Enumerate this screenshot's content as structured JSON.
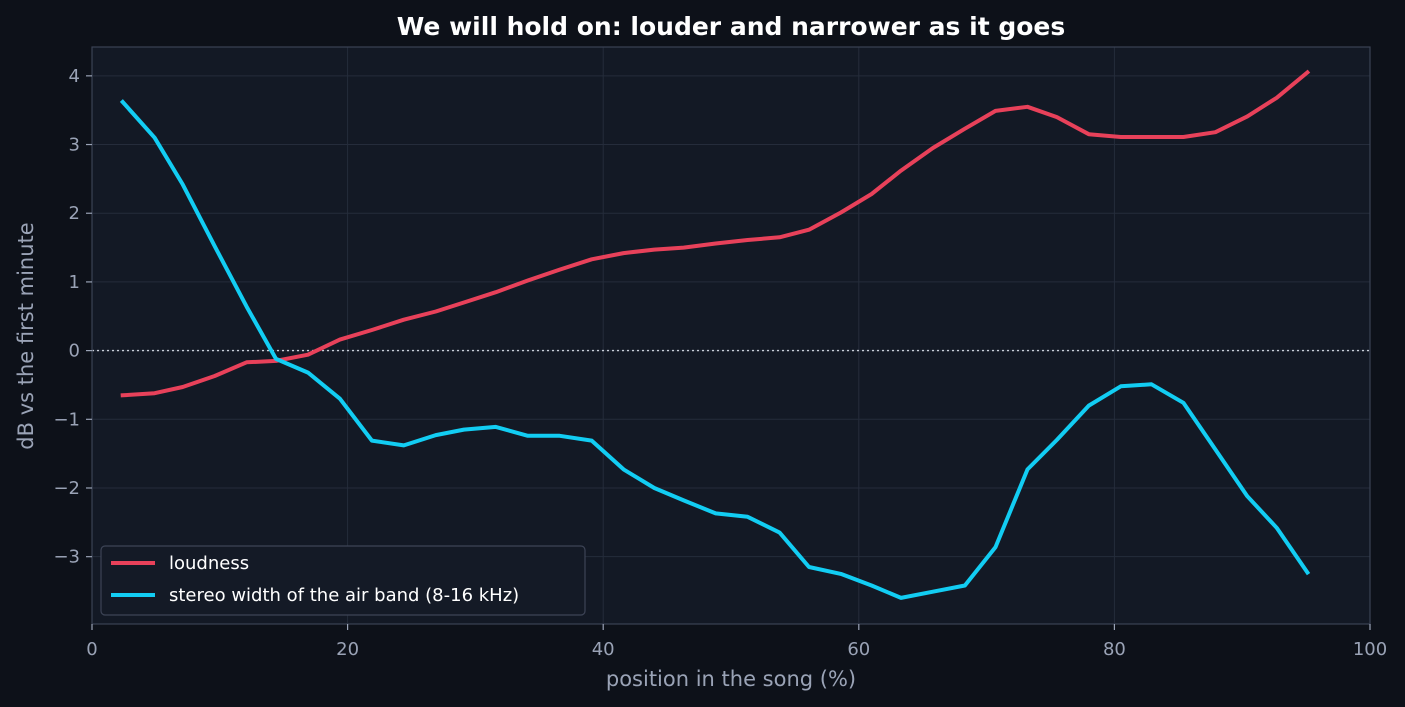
{
  "chart_data": {
    "type": "line",
    "title": "We will hold on: louder and narrower as it goes",
    "xlabel": "position in the song (%)",
    "ylabel": "dB vs the first minute",
    "xlim": [
      0,
      100
    ],
    "ylim": [
      -3.98,
      4.42
    ],
    "xticks": [
      0,
      20,
      40,
      60,
      80,
      100
    ],
    "yticks": [
      -3,
      -2,
      -1,
      0,
      1,
      2,
      3,
      4
    ],
    "grid": true,
    "legend_position": "lower-left",
    "reference_line": {
      "y": 0,
      "style": "dotted",
      "color": "#c9ced8"
    },
    "background_color": "#0d1119",
    "plot_background_color": "#131925",
    "series": [
      {
        "name": "loudness",
        "color": "#e8415a",
        "x": [
          2.4,
          4.9,
          7.1,
          9.6,
          12.1,
          14.4,
          16.9,
          19.4,
          21.9,
          24.4,
          26.9,
          29.1,
          31.6,
          34.1,
          36.6,
          39.1,
          41.6,
          44.0,
          46.3,
          48.8,
          51.3,
          53.8,
          56.1,
          58.6,
          61.0,
          63.3,
          65.8,
          68.3,
          70.7,
          73.2,
          75.5,
          78.0,
          80.5,
          82.9,
          85.4,
          87.9,
          90.4,
          92.7,
          95.1
        ],
        "y": [
          -0.65,
          -0.62,
          -0.53,
          -0.37,
          -0.17,
          -0.15,
          -0.06,
          0.16,
          0.3,
          0.45,
          0.57,
          0.7,
          0.85,
          1.02,
          1.18,
          1.33,
          1.42,
          1.47,
          1.5,
          1.56,
          1.61,
          1.65,
          1.76,
          2.01,
          2.28,
          2.62,
          2.95,
          3.23,
          3.49,
          3.55,
          3.4,
          3.15,
          3.11,
          3.11,
          3.11,
          3.18,
          3.41,
          3.68,
          4.05
        ]
      },
      {
        "name": "stereo width of the air band (8-16 kHz)",
        "color": "#12cdf3",
        "x": [
          2.4,
          4.9,
          7.1,
          9.6,
          12.1,
          14.4,
          16.9,
          19.4,
          21.9,
          24.4,
          26.9,
          29.1,
          31.6,
          34.1,
          36.6,
          39.1,
          41.6,
          44.0,
          46.3,
          48.8,
          51.3,
          53.8,
          56.1,
          58.6,
          61.0,
          63.3,
          65.8,
          68.3,
          70.7,
          73.2,
          75.5,
          78.0,
          80.5,
          82.9,
          85.4,
          87.9,
          90.4,
          92.7,
          95.1
        ],
        "y": [
          3.62,
          3.1,
          2.42,
          1.52,
          0.64,
          -0.12,
          -0.32,
          -0.7,
          -1.31,
          -1.38,
          -1.23,
          -1.15,
          -1.11,
          -1.24,
          -1.24,
          -1.31,
          -1.73,
          -2.0,
          -2.18,
          -2.37,
          -2.42,
          -2.65,
          -3.15,
          -3.25,
          -3.42,
          -3.6,
          -3.51,
          -3.42,
          -2.86,
          -1.73,
          -1.3,
          -0.8,
          -0.52,
          -0.49,
          -0.76,
          -1.44,
          -2.12,
          -2.58,
          -3.23
        ]
      }
    ]
  }
}
